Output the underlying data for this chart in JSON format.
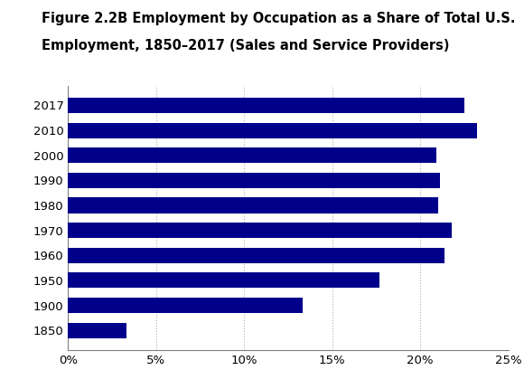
{
  "title_line1": "Figure 2.2B Employment by Occupation as a Share of Total U.S.",
  "title_line2": "Employment, 1850–2017 (Sales and Service Providers)",
  "years": [
    "2017",
    "2010",
    "2000",
    "1990",
    "1980",
    "1970",
    "1960",
    "1950",
    "1900",
    "1850"
  ],
  "values": [
    0.225,
    0.232,
    0.209,
    0.211,
    0.21,
    0.218,
    0.214,
    0.177,
    0.133,
    0.033
  ],
  "bar_color": "#00008B",
  "xlim": [
    0,
    0.25
  ],
  "xticks": [
    0.0,
    0.05,
    0.1,
    0.15,
    0.2,
    0.25
  ],
  "xticklabels": [
    "0%",
    "5%",
    "10%",
    "15%",
    "20%",
    "25%"
  ],
  "background_color": "#ffffff",
  "title_fontsize": 10.5,
  "tick_fontsize": 9.5,
  "grid_color": "#b0b0b0"
}
